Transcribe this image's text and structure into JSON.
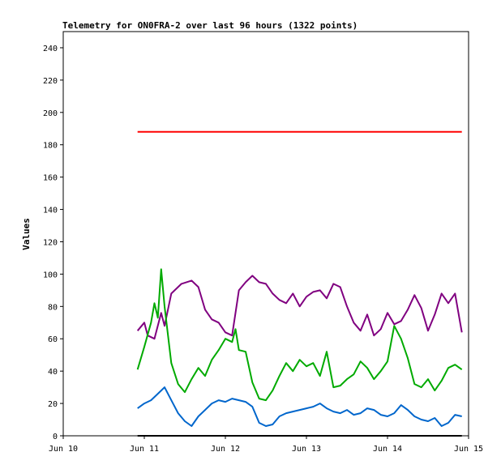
{
  "chart_data": {
    "type": "line",
    "title": "Telemetry for ON0FRA-2 over last 96 hours (1322 points)",
    "xlabel": "",
    "ylabel": "Values",
    "ylim": [
      0,
      250
    ],
    "yticks": [
      0,
      20,
      40,
      60,
      80,
      100,
      120,
      140,
      160,
      180,
      200,
      220,
      240
    ],
    "xlim": [
      "2023-06-10",
      "2023-06-15"
    ],
    "xticks": [
      "Jun 10",
      "Jun 11",
      "Jun 12",
      "Jun 13",
      "Jun 14",
      "Jun 15"
    ],
    "grid": false,
    "legend": "none",
    "series": [
      {
        "color": "#ff0000",
        "x": [
          "2023-06-10 22:00",
          "2023-06-11 06:00",
          "2023-06-11 12:00",
          "2023-06-12 00:00",
          "2023-06-12 12:00",
          "2023-06-13 00:00",
          "2023-06-13 12:00",
          "2023-06-14 00:00",
          "2023-06-14 12:00",
          "2023-06-14 22:00"
        ],
        "values": [
          188,
          188,
          188,
          188,
          188,
          188,
          188,
          188,
          188,
          188
        ]
      },
      {
        "color": "#800080",
        "x": [
          "2023-06-10 22:00",
          "2023-06-11 00:00",
          "2023-06-11 01:00",
          "2023-06-11 03:00",
          "2023-06-11 05:00",
          "2023-06-11 06:00",
          "2023-06-11 08:00",
          "2023-06-11 11:00",
          "2023-06-11 14:00",
          "2023-06-11 16:00",
          "2023-06-11 18:00",
          "2023-06-11 20:00",
          "2023-06-11 22:00",
          "2023-06-12 00:00",
          "2023-06-12 02:00",
          "2023-06-12 04:00",
          "2023-06-12 06:00",
          "2023-06-12 08:00",
          "2023-06-12 10:00",
          "2023-06-12 12:00",
          "2023-06-12 14:00",
          "2023-06-12 16:00",
          "2023-06-12 18:00",
          "2023-06-12 20:00",
          "2023-06-12 22:00",
          "2023-06-13 00:00",
          "2023-06-13 02:00",
          "2023-06-13 04:00",
          "2023-06-13 06:00",
          "2023-06-13 08:00",
          "2023-06-13 10:00",
          "2023-06-13 12:00",
          "2023-06-13 14:00",
          "2023-06-13 16:00",
          "2023-06-13 18:00",
          "2023-06-13 20:00",
          "2023-06-13 22:00",
          "2023-06-14 00:00",
          "2023-06-14 02:00",
          "2023-06-14 04:00",
          "2023-06-14 06:00",
          "2023-06-14 08:00",
          "2023-06-14 10:00",
          "2023-06-14 12:00",
          "2023-06-14 14:00",
          "2023-06-14 16:00",
          "2023-06-14 18:00",
          "2023-06-14 20:00",
          "2023-06-14 22:00"
        ],
        "values": [
          65,
          70,
          62,
          60,
          76,
          68,
          88,
          94,
          96,
          92,
          78,
          72,
          70,
          64,
          62,
          90,
          95,
          99,
          95,
          94,
          88,
          84,
          82,
          88,
          80,
          86,
          89,
          90,
          85,
          94,
          92,
          80,
          70,
          65,
          75,
          62,
          66,
          76,
          69,
          71,
          78,
          87,
          79,
          65,
          75,
          88,
          82,
          88,
          64
        ]
      },
      {
        "color": "#00aa00",
        "x": [
          "2023-06-10 22:00",
          "2023-06-11 00:00",
          "2023-06-11 02:00",
          "2023-06-11 03:00",
          "2023-06-11 04:00",
          "2023-06-11 05:00",
          "2023-06-11 06:00",
          "2023-06-11 08:00",
          "2023-06-11 10:00",
          "2023-06-11 12:00",
          "2023-06-11 14:00",
          "2023-06-11 16:00",
          "2023-06-11 18:00",
          "2023-06-11 20:00",
          "2023-06-11 22:00",
          "2023-06-12 00:00",
          "2023-06-12 02:00",
          "2023-06-12 03:00",
          "2023-06-12 04:00",
          "2023-06-12 06:00",
          "2023-06-12 08:00",
          "2023-06-12 10:00",
          "2023-06-12 12:00",
          "2023-06-12 14:00",
          "2023-06-12 16:00",
          "2023-06-12 18:00",
          "2023-06-12 20:00",
          "2023-06-12 22:00",
          "2023-06-13 00:00",
          "2023-06-13 02:00",
          "2023-06-13 04:00",
          "2023-06-13 06:00",
          "2023-06-13 08:00",
          "2023-06-13 10:00",
          "2023-06-13 12:00",
          "2023-06-13 14:00",
          "2023-06-13 16:00",
          "2023-06-13 18:00",
          "2023-06-13 20:00",
          "2023-06-13 22:00",
          "2023-06-14 00:00",
          "2023-06-14 02:00",
          "2023-06-14 04:00",
          "2023-06-14 06:00",
          "2023-06-14 08:00",
          "2023-06-14 10:00",
          "2023-06-14 12:00",
          "2023-06-14 14:00",
          "2023-06-14 16:00",
          "2023-06-14 18:00",
          "2023-06-14 20:00",
          "2023-06-14 22:00"
        ],
        "values": [
          41,
          55,
          70,
          82,
          73,
          103,
          80,
          45,
          32,
          27,
          35,
          42,
          37,
          47,
          53,
          60,
          58,
          66,
          53,
          52,
          33,
          23,
          22,
          28,
          37,
          45,
          40,
          47,
          43,
          45,
          37,
          52,
          30,
          31,
          35,
          38,
          46,
          42,
          35,
          40,
          46,
          68,
          60,
          48,
          32,
          30,
          35,
          28,
          34,
          42,
          44,
          41
        ]
      },
      {
        "color": "#0066cc",
        "x": [
          "2023-06-10 22:00",
          "2023-06-11 00:00",
          "2023-06-11 02:00",
          "2023-06-11 04:00",
          "2023-06-11 06:00",
          "2023-06-11 08:00",
          "2023-06-11 10:00",
          "2023-06-11 12:00",
          "2023-06-11 14:00",
          "2023-06-11 16:00",
          "2023-06-11 18:00",
          "2023-06-11 20:00",
          "2023-06-11 22:00",
          "2023-06-12 00:00",
          "2023-06-12 02:00",
          "2023-06-12 04:00",
          "2023-06-12 06:00",
          "2023-06-12 08:00",
          "2023-06-12 10:00",
          "2023-06-12 12:00",
          "2023-06-12 14:00",
          "2023-06-12 16:00",
          "2023-06-12 18:00",
          "2023-06-12 20:00",
          "2023-06-12 22:00",
          "2023-06-13 00:00",
          "2023-06-13 02:00",
          "2023-06-13 04:00",
          "2023-06-13 06:00",
          "2023-06-13 08:00",
          "2023-06-13 10:00",
          "2023-06-13 12:00",
          "2023-06-13 14:00",
          "2023-06-13 16:00",
          "2023-06-13 18:00",
          "2023-06-13 20:00",
          "2023-06-13 22:00",
          "2023-06-14 00:00",
          "2023-06-14 02:00",
          "2023-06-14 04:00",
          "2023-06-14 06:00",
          "2023-06-14 08:00",
          "2023-06-14 10:00",
          "2023-06-14 12:00",
          "2023-06-14 14:00",
          "2023-06-14 16:00",
          "2023-06-14 18:00",
          "2023-06-14 20:00",
          "2023-06-14 22:00"
        ],
        "values": [
          17,
          20,
          22,
          26,
          30,
          22,
          14,
          9,
          6,
          12,
          16,
          20,
          22,
          21,
          23,
          22,
          21,
          18,
          8,
          6,
          7,
          12,
          14,
          15,
          16,
          17,
          18,
          20,
          17,
          15,
          14,
          16,
          13,
          14,
          17,
          16,
          13,
          12,
          14,
          19,
          16,
          12,
          10,
          9,
          11,
          6,
          8,
          13,
          12
        ]
      },
      {
        "color": "#000000",
        "x": [
          "2023-06-10 22:00",
          "2023-06-14 22:00"
        ],
        "values": [
          0,
          0
        ]
      }
    ]
  }
}
